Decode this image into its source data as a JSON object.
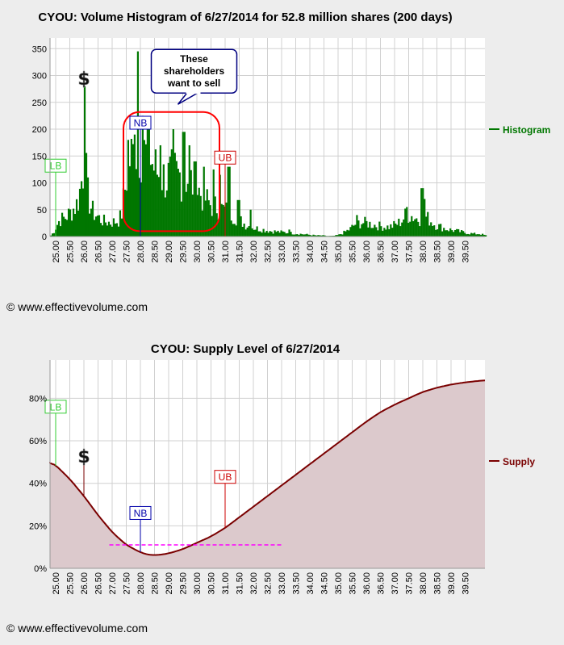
{
  "chart_data": [
    {
      "type": "bar",
      "title": "CYOU: Volume Histogram of 6/27/2014 for 52.8 million shares (200 days)",
      "series": [
        {
          "name": "Histogram",
          "color": "#007700"
        }
      ],
      "x_ticks": [
        "25.00",
        "25.50",
        "26.00",
        "26.50",
        "27.00",
        "27.50",
        "28.00",
        "28.50",
        "29.00",
        "29.50",
        "30.00",
        "30.50",
        "31.00",
        "31.50",
        "32.00",
        "32.50",
        "33.00",
        "33.50",
        "34.00",
        "34.50",
        "35.00",
        "35.50",
        "36.00",
        "36.50",
        "37.00",
        "37.50",
        "38.00",
        "38.50",
        "39.00",
        "39.50"
      ],
      "y_ticks": [
        "0",
        "50",
        "100",
        "150",
        "200",
        "250",
        "300",
        "350"
      ],
      "xlim": [
        24.8,
        40.2
      ],
      "ylim": [
        0,
        370
      ],
      "profile": [
        [
          24.8,
          2
        ],
        [
          24.9,
          8
        ],
        [
          25.0,
          20
        ],
        [
          25.1,
          30
        ],
        [
          25.2,
          33
        ],
        [
          25.3,
          35
        ],
        [
          25.4,
          40
        ],
        [
          25.5,
          45
        ],
        [
          25.6,
          52
        ],
        [
          25.7,
          58
        ],
        [
          25.8,
          75
        ],
        [
          25.9,
          110
        ],
        [
          26.0,
          150
        ],
        [
          26.1,
          80
        ],
        [
          26.2,
          58
        ],
        [
          26.3,
          45
        ],
        [
          26.4,
          40
        ],
        [
          26.5,
          35
        ],
        [
          26.6,
          30
        ],
        [
          26.7,
          28
        ],
        [
          26.8,
          27
        ],
        [
          26.9,
          26
        ],
        [
          27.0,
          27
        ],
        [
          27.1,
          28
        ],
        [
          27.2,
          30
        ],
        [
          27.3,
          40
        ],
        [
          27.4,
          80
        ],
        [
          27.5,
          120
        ],
        [
          27.6,
          145
        ],
        [
          27.7,
          150
        ],
        [
          27.8,
          165
        ],
        [
          27.9,
          175
        ],
        [
          28.0,
          170
        ],
        [
          28.1,
          155
        ],
        [
          28.2,
          150
        ],
        [
          28.3,
          145
        ],
        [
          28.4,
          135
        ],
        [
          28.5,
          125
        ],
        [
          28.6,
          118
        ],
        [
          28.7,
          115
        ],
        [
          28.8,
          110
        ],
        [
          28.9,
          108
        ],
        [
          29.0,
          112
        ],
        [
          29.1,
          115
        ],
        [
          29.2,
          118
        ],
        [
          29.3,
          112
        ],
        [
          29.4,
          115
        ],
        [
          29.5,
          110
        ],
        [
          29.6,
          112
        ],
        [
          29.7,
          105
        ],
        [
          29.8,
          100
        ],
        [
          29.9,
          95
        ],
        [
          30.0,
          88
        ],
        [
          30.1,
          80
        ],
        [
          30.2,
          75
        ],
        [
          30.3,
          68
        ],
        [
          30.4,
          62
        ],
        [
          30.5,
          58
        ],
        [
          30.6,
          55
        ],
        [
          30.7,
          55
        ],
        [
          30.8,
          52
        ],
        [
          30.9,
          50
        ],
        [
          31.0,
          48
        ],
        [
          31.1,
          45
        ],
        [
          31.2,
          42
        ],
        [
          31.3,
          38
        ],
        [
          31.4,
          35
        ],
        [
          31.5,
          30
        ],
        [
          31.6,
          26
        ],
        [
          31.7,
          22
        ],
        [
          31.8,
          20
        ],
        [
          31.9,
          18
        ],
        [
          32.0,
          16
        ],
        [
          32.2,
          14
        ],
        [
          32.4,
          12
        ],
        [
          32.6,
          10
        ],
        [
          32.8,
          9
        ],
        [
          33.0,
          8
        ],
        [
          33.2,
          7
        ],
        [
          33.4,
          6
        ],
        [
          33.6,
          5
        ],
        [
          33.8,
          4
        ],
        [
          34.0,
          3
        ],
        [
          34.2,
          2
        ],
        [
          34.4,
          2
        ],
        [
          34.6,
          1
        ],
        [
          34.8,
          1
        ],
        [
          35.0,
          3
        ],
        [
          35.2,
          8
        ],
        [
          35.4,
          14
        ],
        [
          35.6,
          24
        ],
        [
          35.8,
          26
        ],
        [
          36.0,
          25
        ],
        [
          36.2,
          22
        ],
        [
          36.4,
          20
        ],
        [
          36.6,
          18
        ],
        [
          36.8,
          18
        ],
        [
          37.0,
          22
        ],
        [
          37.2,
          28
        ],
        [
          37.4,
          42
        ],
        [
          37.6,
          38
        ],
        [
          37.8,
          32
        ],
        [
          38.0,
          38
        ],
        [
          38.2,
          32
        ],
        [
          38.4,
          22
        ],
        [
          38.6,
          18
        ],
        [
          38.8,
          14
        ],
        [
          39.0,
          12
        ],
        [
          39.2,
          10
        ],
        [
          39.4,
          8
        ],
        [
          39.6,
          6
        ],
        [
          39.8,
          5
        ],
        [
          40.0,
          5
        ],
        [
          40.2,
          2
        ]
      ],
      "spikes": [
        [
          26.0,
          280
        ],
        [
          27.55,
          180
        ],
        [
          27.75,
          190
        ],
        [
          27.9,
          345
        ],
        [
          28.05,
          225
        ],
        [
          28.3,
          200
        ],
        [
          28.7,
          170
        ],
        [
          29.15,
          200
        ],
        [
          29.5,
          195
        ],
        [
          29.7,
          170
        ],
        [
          29.9,
          140
        ],
        [
          30.2,
          130
        ],
        [
          30.55,
          125
        ],
        [
          30.8,
          115
        ],
        [
          31.1,
          130
        ],
        [
          31.45,
          68
        ],
        [
          31.85,
          50
        ],
        [
          33.25,
          13
        ],
        [
          35.65,
          40
        ],
        [
          37.4,
          55
        ],
        [
          37.95,
          90
        ],
        [
          38.05,
          70
        ]
      ],
      "annotations": {
        "LB": {
          "text": "LB",
          "x": 25.0,
          "value": 120
        },
        "dollar": {
          "text": "$",
          "x": 26.0,
          "value": 280
        },
        "NB": {
          "text": "NB",
          "x": 28.0,
          "value": 200
        },
        "UB": {
          "text": "UB",
          "x": 31.0,
          "value": 135
        },
        "callout": [
          "These",
          "shareholders",
          "want to sell"
        ],
        "callout_at": [
          29.9,
          308
        ],
        "region": {
          "x0": 27.4,
          "x1": 30.8,
          "y0": 10,
          "y1": 232
        }
      },
      "colors": {
        "bar": "#007700",
        "LB": "#33cc33",
        "NB": "#0000aa",
        "UB": "#cc0000",
        "region": "#ff0000",
        "callout_border": "#000080"
      }
    },
    {
      "type": "area",
      "title": "CYOU: Supply Level of 6/27/2014",
      "series": [
        {
          "name": "Supply",
          "color": "#7a0000",
          "fill": "#dcc9cc"
        }
      ],
      "x_ticks": [
        "25.00",
        "25.50",
        "26.00",
        "26.50",
        "27.00",
        "27.50",
        "28.00",
        "28.50",
        "29.00",
        "29.50",
        "30.00",
        "30.50",
        "31.00",
        "31.50",
        "32.00",
        "32.50",
        "33.00",
        "33.50",
        "34.00",
        "34.50",
        "35.00",
        "35.50",
        "36.00",
        "36.50",
        "37.00",
        "37.50",
        "38.00",
        "38.50",
        "39.00",
        "39.50"
      ],
      "y_ticks": [
        "0%",
        "20%",
        "40%",
        "60%",
        "80%"
      ],
      "xlim": [
        24.8,
        40.2
      ],
      "ylim": [
        0,
        98
      ],
      "x": [
        24.8,
        25.0,
        25.5,
        26.0,
        26.5,
        27.0,
        27.5,
        28.0,
        28.3,
        28.6,
        29.0,
        29.5,
        30.0,
        30.5,
        31.0,
        31.5,
        32.0,
        32.5,
        33.0,
        33.5,
        34.0,
        34.5,
        35.0,
        35.5,
        36.0,
        36.5,
        37.0,
        37.5,
        38.0,
        38.5,
        39.0,
        39.5,
        40.2
      ],
      "y": [
        50,
        48.5,
        42,
        34,
        25,
        17,
        11,
        7.5,
        6.3,
        6.2,
        7,
        9,
        12,
        15,
        19,
        24,
        29,
        34,
        39,
        44,
        49,
        54,
        59,
        64,
        69,
        73.5,
        77,
        80,
        83,
        85,
        86.5,
        87.5,
        88.5
      ],
      "reference_line": {
        "x0": 26.9,
        "x1": 33.0,
        "y": 11,
        "color": "#ff00ff"
      },
      "annotations": {
        "LB": {
          "text": "LB",
          "x": 25.0,
          "value": 73
        },
        "dollar": {
          "text": "$",
          "x": 26.0,
          "value": 49
        },
        "NB": {
          "text": "NB",
          "x": 28.0,
          "value": 23
        },
        "UB": {
          "text": "UB",
          "x": 31.0,
          "value": 40
        }
      },
      "colors": {
        "LB": "#33cc33",
        "NB": "#0000aa",
        "UB": "#cc0000"
      }
    }
  ],
  "copyright": "© www.effectivevolume.com"
}
